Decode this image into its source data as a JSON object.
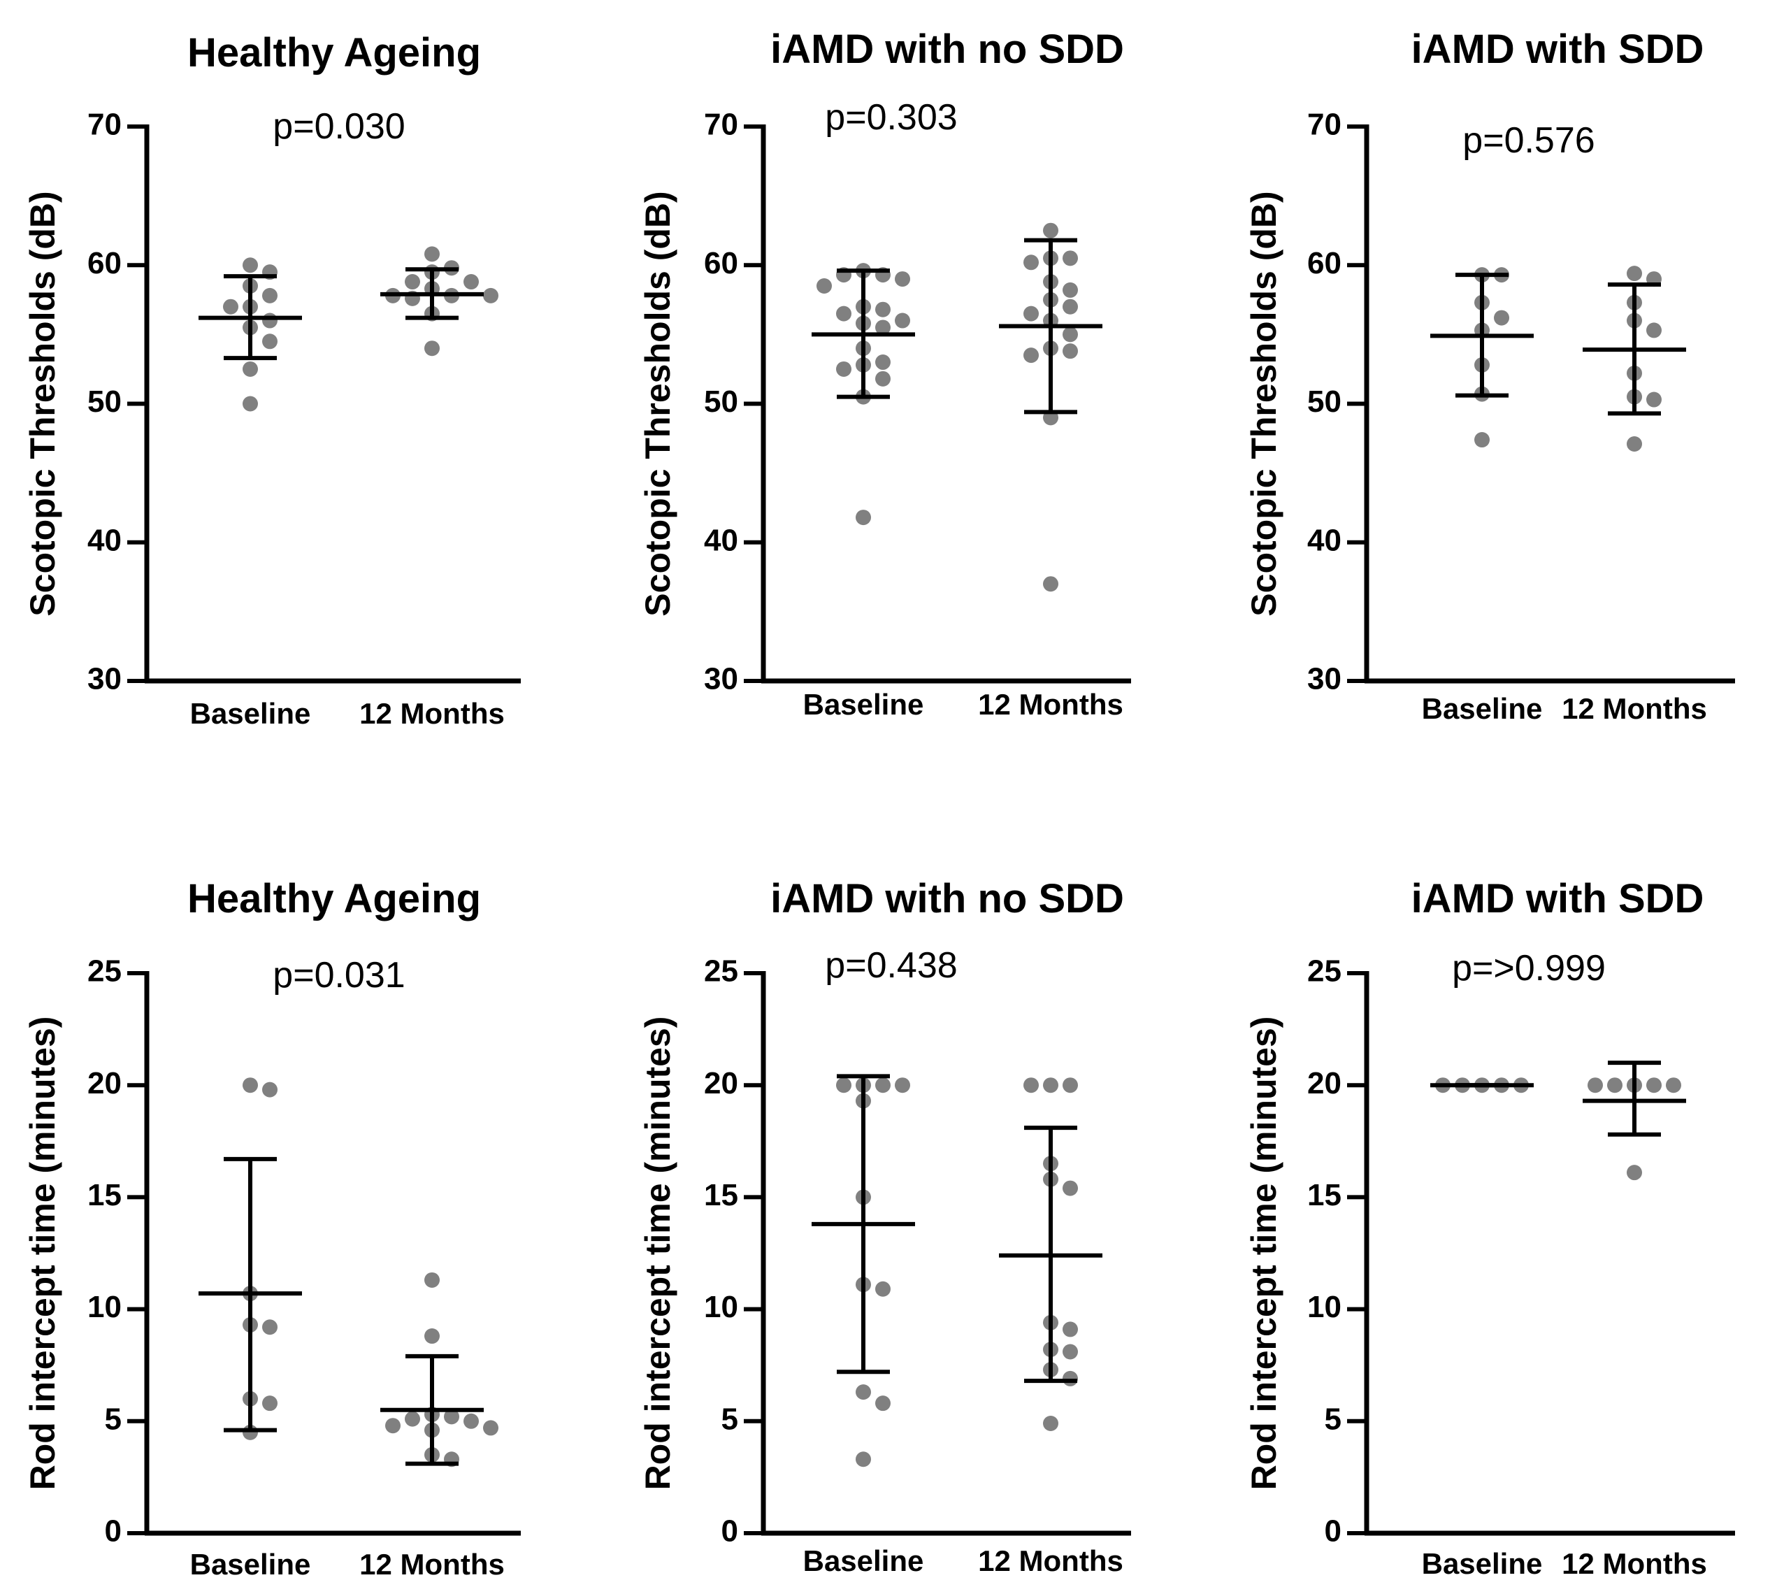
{
  "colors": {
    "point": "#808080",
    "line": "#000000",
    "background": "#ffffff"
  },
  "chart_data": [
    {
      "type": "scatter",
      "title": "Healthy Ageing",
      "annotation": "p=0.030",
      "ylabel": "Scotopic Thresholds (dB)",
      "ylim": [
        30,
        70
      ],
      "yticks": [
        30,
        40,
        50,
        60,
        70
      ],
      "categories": [
        "Baseline",
        "12 Months"
      ],
      "series": [
        {
          "points": [
            59.5,
            60,
            58.5,
            57,
            57,
            55.5,
            56,
            57.8,
            54.5,
            52.5,
            50
          ],
          "mean": 56.2,
          "sd_low": 53.3,
          "sd_high": 59.2
        },
        {
          "points": [
            60.8,
            59.8,
            59.5,
            58.8,
            58.8,
            58.3,
            57.8,
            57.8,
            57.8,
            57.6,
            56.5,
            54
          ],
          "mean": 57.9,
          "sd_low": 56.2,
          "sd_high": 59.7
        }
      ]
    },
    {
      "type": "scatter",
      "title": "iAMD with no SDD",
      "annotation": "p=0.303",
      "ylabel": "Scotopic Thresholds (dB)",
      "ylim": [
        30,
        70
      ],
      "yticks": [
        30,
        40,
        50,
        60,
        70
      ],
      "categories": [
        "Baseline",
        "12 Months"
      ],
      "series": [
        {
          "points": [
            59.6,
            59.3,
            59.3,
            59,
            58.5,
            57,
            56.8,
            56.5,
            56,
            55.8,
            55.5,
            54,
            53,
            52.8,
            52.5,
            51.8,
            50.5,
            41.8
          ],
          "mean": 55.0,
          "sd_low": 50.5,
          "sd_high": 59.6
        },
        {
          "points": [
            62.5,
            60.5,
            60.5,
            60.2,
            58.8,
            58.2,
            57.5,
            57,
            56.5,
            56,
            55,
            54,
            53.8,
            53.5,
            49,
            37
          ],
          "mean": 55.6,
          "sd_low": 49.4,
          "sd_high": 61.8
        }
      ]
    },
    {
      "type": "scatter",
      "title": "iAMD with SDD",
      "annotation": "p=0.576",
      "ylabel": "Scotopic Thresholds (dB)",
      "ylim": [
        30,
        70
      ],
      "yticks": [
        30,
        40,
        50,
        60,
        70
      ],
      "categories": [
        "Baseline",
        "12 Months"
      ],
      "series": [
        {
          "points": [
            59.3,
            59.3,
            57.3,
            56.2,
            55.3,
            52.8,
            50.7,
            47.4
          ],
          "mean": 54.9,
          "sd_low": 50.6,
          "sd_high": 59.3
        },
        {
          "points": [
            59.4,
            59,
            57.3,
            56,
            55.3,
            52.2,
            50.5,
            50.3,
            47.1
          ],
          "mean": 53.9,
          "sd_low": 49.3,
          "sd_high": 58.6
        }
      ]
    },
    {
      "type": "scatter",
      "title": "Healthy Ageing",
      "annotation": "p=0.031",
      "ylabel": "Rod intercept time (minutes)",
      "ylim": [
        0,
        25
      ],
      "yticks": [
        0,
        5,
        10,
        15,
        20,
        25
      ],
      "categories": [
        "Baseline",
        "12 Months"
      ],
      "series": [
        {
          "points": [
            19.8,
            20,
            10.7,
            9.3,
            9.2,
            6,
            5.8,
            4.5
          ],
          "mean": 10.7,
          "sd_low": 4.6,
          "sd_high": 16.7
        },
        {
          "points": [
            11.3,
            8.8,
            5.3,
            5.2,
            5.1,
            5.0,
            4.8,
            4.7,
            4.6,
            3.5,
            3.3
          ],
          "mean": 5.5,
          "sd_low": 3.1,
          "sd_high": 7.9
        }
      ]
    },
    {
      "type": "scatter",
      "title": "iAMD with no SDD",
      "annotation": "p=0.438",
      "ylabel": "Rod intercept time (minutes)",
      "ylim": [
        0,
        25
      ],
      "yticks": [
        0,
        5,
        10,
        15,
        20,
        25
      ],
      "categories": [
        "Baseline",
        "12 Months"
      ],
      "series": [
        {
          "points": [
            20,
            20,
            20,
            20,
            19.3,
            15,
            11.1,
            10.9,
            6.3,
            5.8,
            3.3
          ],
          "mean": 13.8,
          "sd_low": 7.2,
          "sd_high": 20.4
        },
        {
          "points": [
            20,
            20,
            20,
            16.5,
            15.8,
            15.4,
            9.4,
            9.1,
            8.2,
            8.1,
            7.3,
            6.9,
            4.9
          ],
          "mean": 12.4,
          "sd_low": 6.8,
          "sd_high": 18.1
        }
      ]
    },
    {
      "type": "scatter",
      "title": "iAMD with SDD",
      "annotation": "p=>0.999",
      "ylabel": "Rod intercept time (minutes)",
      "ylim": [
        0,
        25
      ],
      "yticks": [
        0,
        5,
        10,
        15,
        20,
        25
      ],
      "categories": [
        "Baseline",
        "12 Months"
      ],
      "series": [
        {
          "points": [
            20,
            20,
            20,
            20,
            20
          ],
          "mean": 20,
          "sd_low": 20,
          "sd_high": 20
        },
        {
          "points": [
            20,
            20,
            20,
            20,
            20,
            16.1
          ],
          "mean": 19.3,
          "sd_low": 17.8,
          "sd_high": 21
        }
      ]
    }
  ]
}
